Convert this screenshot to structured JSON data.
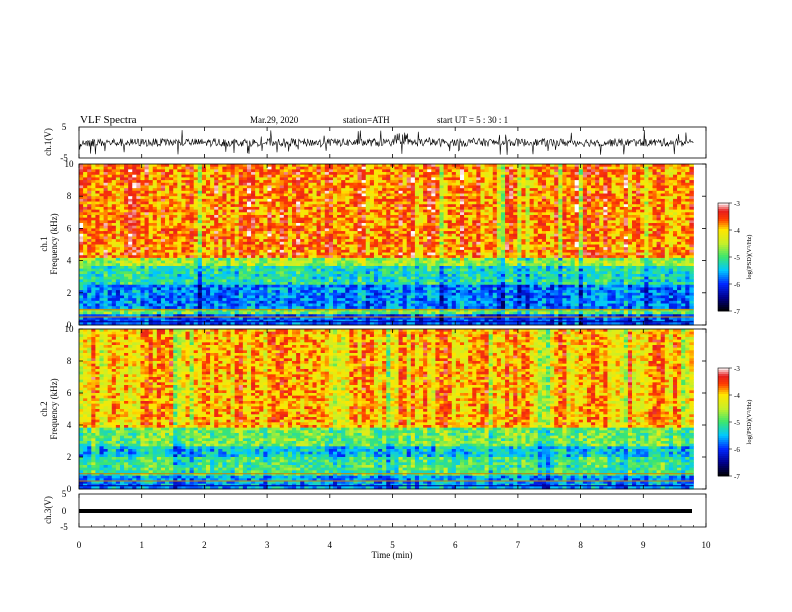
{
  "header": {
    "title": "VLF  Spectra",
    "date": "Mar.29, 2020",
    "station": "station=ATH",
    "start": "start  UT  =    5  : 30 : 1"
  },
  "chart_data": [
    {
      "type": "line",
      "name": "ch1-waveform",
      "ylabel": "ch.1(V)",
      "ylim": [
        -5,
        5
      ],
      "yticks": [
        "5",
        "-5"
      ],
      "xlim": [
        0,
        10
      ],
      "description_level": "waveform centered near 0 V, amplitude about 2 V",
      "line_color": "#000000"
    },
    {
      "type": "heatmap",
      "name": "ch1-spectrogram",
      "ylabel_top": "ch.1",
      "ylabel": "Frequency  (kHz)",
      "ylim": [
        0,
        10
      ],
      "yticks": [
        "0",
        "2",
        "4",
        "6",
        "8",
        "10"
      ],
      "xlim": [
        0,
        10
      ],
      "data_end_min": 9.8,
      "colorbar": {
        "label": "log(PSD)(V²/Hz)",
        "ticks": [
          "-3",
          "-4",
          "-5",
          "-6",
          "-7"
        ],
        "range": [
          -7,
          -3
        ]
      },
      "bands": [
        {
          "from_khz": 4.2,
          "to_khz": 10,
          "level": -3.7
        },
        {
          "from_khz": 3.6,
          "to_khz": 4.2,
          "level": -4.6
        },
        {
          "from_khz": 2.5,
          "to_khz": 3.6,
          "level": -5.2
        },
        {
          "from_khz": 1.0,
          "to_khz": 2.5,
          "level": -5.7
        },
        {
          "from_khz": 0.6,
          "to_khz": 1.0,
          "level": -4.8
        },
        {
          "from_khz": 0.0,
          "to_khz": 0.6,
          "level": -5.9
        }
      ]
    },
    {
      "type": "heatmap",
      "name": "ch2-spectrogram",
      "ylabel_top": "ch.2",
      "ylabel": "Frequency  (kHz)",
      "ylim": [
        0,
        10
      ],
      "yticks": [
        "0",
        "2",
        "4",
        "6",
        "8",
        "10"
      ],
      "xlim": [
        0,
        10
      ],
      "data_end_min": 9.8,
      "colorbar": {
        "label": "log(PSD)(V²/Hz)",
        "ticks": [
          "-3",
          "-4",
          "-5",
          "-6",
          "-7"
        ],
        "range": [
          -7,
          -3
        ]
      },
      "bands": [
        {
          "from_khz": 3.8,
          "to_khz": 10,
          "level": -3.9
        },
        {
          "from_khz": 2.6,
          "to_khz": 3.8,
          "level": -4.8
        },
        {
          "from_khz": 2.0,
          "to_khz": 2.6,
          "level": -5.4
        },
        {
          "from_khz": 0.9,
          "to_khz": 2.0,
          "level": -5.0
        },
        {
          "from_khz": 0.0,
          "to_khz": 0.9,
          "level": -5.6
        }
      ]
    },
    {
      "type": "line",
      "name": "ch3-waveform",
      "ylabel": "ch.3(V)",
      "ylim": [
        -5,
        5
      ],
      "yticks": [
        "5",
        "0",
        "-5"
      ],
      "xlim": [
        0,
        10
      ],
      "level_v": 0,
      "line_color": "#000000"
    }
  ],
  "xaxis": {
    "label": "Time  (min)",
    "ticks": [
      "0",
      "1",
      "2",
      "3",
      "4",
      "5",
      "6",
      "7",
      "8",
      "9",
      "10"
    ]
  }
}
